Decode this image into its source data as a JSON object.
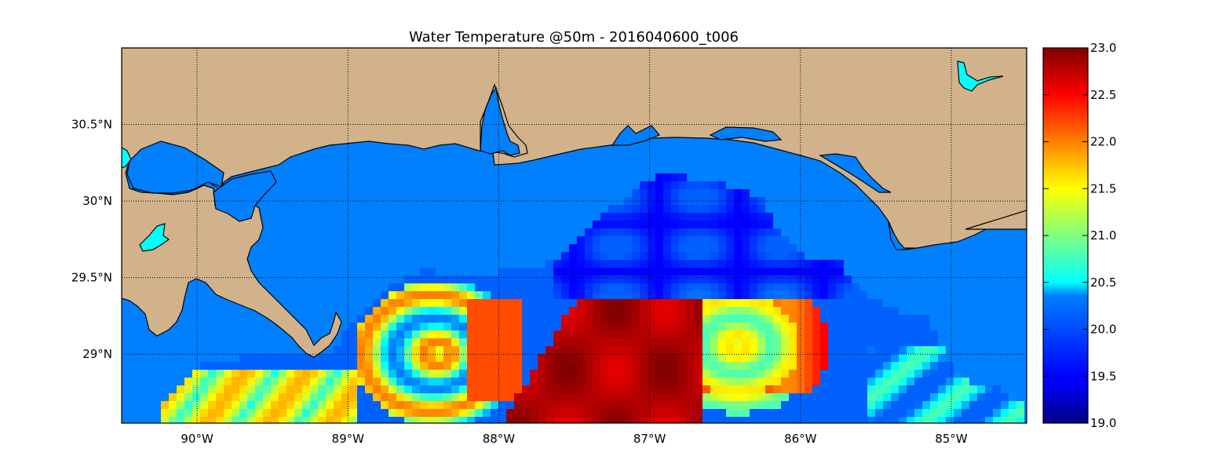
{
  "title": "Water Temperature @50m - 2016040600_t006",
  "map": {
    "lon_range": [
      -90.5,
      -84.5
    ],
    "lat_range": [
      28.55,
      31.0
    ],
    "lon_ticks": [
      {
        "value": -90,
        "label": "90°W"
      },
      {
        "value": -89,
        "label": "89°W"
      },
      {
        "value": -88,
        "label": "88°W"
      },
      {
        "value": -87,
        "label": "87°W"
      },
      {
        "value": -86,
        "label": "86°W"
      },
      {
        "value": -85,
        "label": "85°W"
      }
    ],
    "lat_ticks": [
      {
        "value": 29.0,
        "label": "29°N"
      },
      {
        "value": 29.5,
        "label": "29.5°N"
      },
      {
        "value": 30.0,
        "label": "30°N"
      },
      {
        "value": 30.5,
        "label": "30.5°N"
      }
    ],
    "grid": "dotted",
    "land_color": "#d1b28a",
    "nodata_water_color": "#0080ff",
    "lake_color": "#00ffff"
  },
  "colorbar": {
    "range": [
      19.0,
      23.0
    ],
    "colormap": "jet",
    "placement": "right",
    "ticks": [
      "19.0",
      "19.5",
      "20.0",
      "20.5",
      "21.0",
      "21.5",
      "22.0",
      "22.5",
      "23.0"
    ]
  }
}
